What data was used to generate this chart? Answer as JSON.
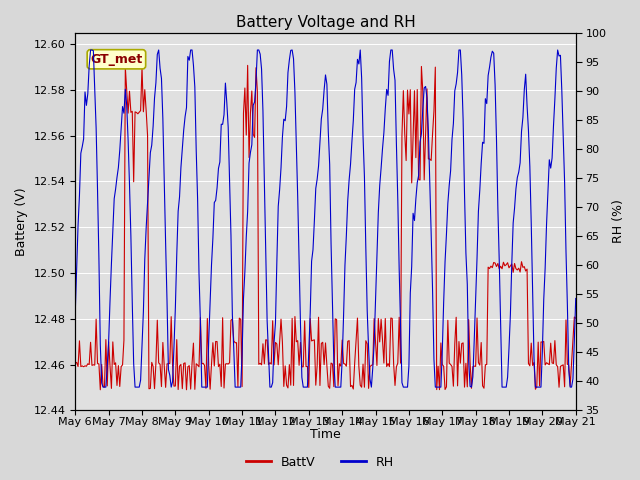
{
  "title": "Battery Voltage and RH",
  "xlabel": "Time",
  "ylabel_left": "Battery (V)",
  "ylabel_right": "RH (%)",
  "annotation": "GT_met",
  "ylim_left": [
    12.44,
    12.605
  ],
  "ylim_right": [
    35,
    100
  ],
  "yticks_left": [
    12.44,
    12.46,
    12.48,
    12.5,
    12.52,
    12.54,
    12.56,
    12.58,
    12.6
  ],
  "yticks_right": [
    35,
    40,
    45,
    50,
    55,
    60,
    65,
    70,
    75,
    80,
    85,
    90,
    95,
    100
  ],
  "xtick_labels": [
    "May 6",
    "May 7",
    "May 8",
    "May 9",
    "May 10",
    "May 11",
    "May 12",
    "May 13",
    "May 14",
    "May 15",
    "May 16",
    "May 17",
    "May 18",
    "May 19",
    "May 20",
    "May 21"
  ],
  "color_battv": "#cc0000",
  "color_rh": "#0000cc",
  "legend_labels": [
    "BattV",
    "RH"
  ],
  "fig_facecolor": "#d8d8d8",
  "plot_facecolor": "#e0e0e0",
  "title_fontsize": 11,
  "label_fontsize": 9,
  "tick_fontsize": 8
}
